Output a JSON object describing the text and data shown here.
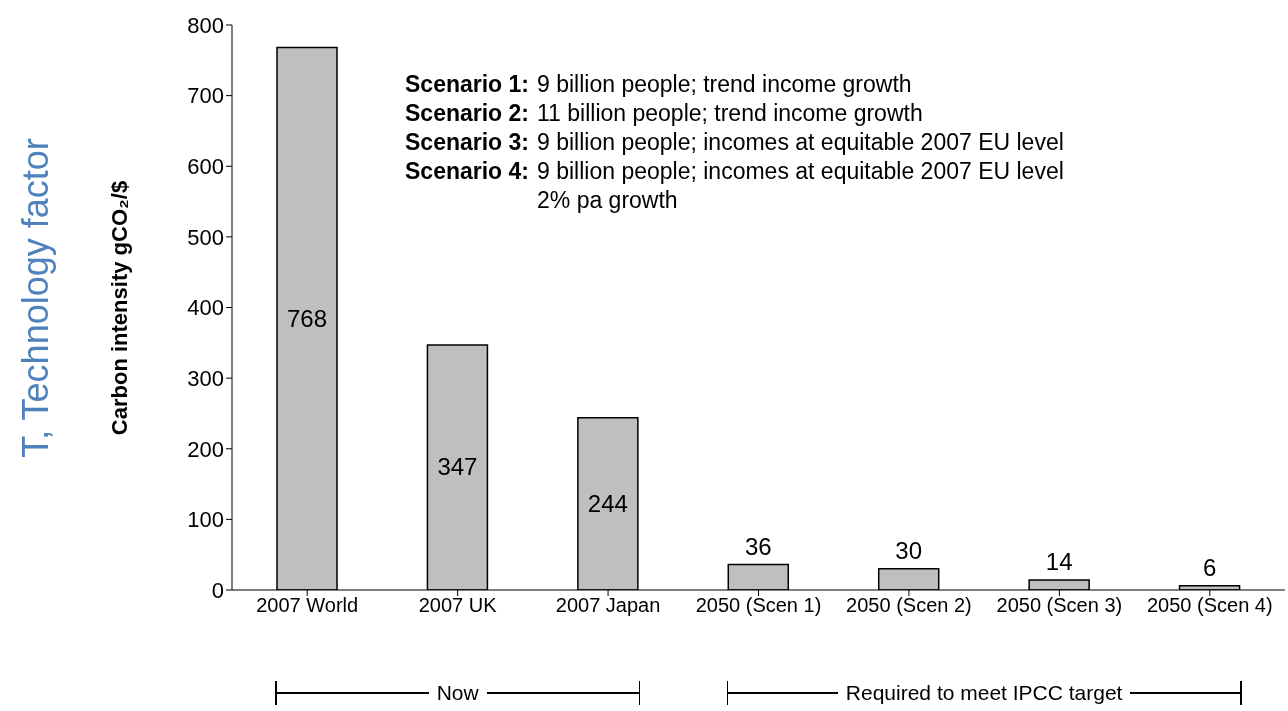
{
  "chart_data": {
    "type": "bar",
    "title": "T, Technology factor",
    "ylabel": "Carbon intensity gCO₂/$",
    "categories": [
      "2007 World",
      "2007 UK",
      "2007 Japan",
      "2050 (Scen 1)",
      "2050 (Scen 2)",
      "2050 (Scen 3)",
      "2050 (Scen 4)"
    ],
    "values": [
      768,
      347,
      244,
      36,
      30,
      14,
      6
    ],
    "color": "#bfbfbf",
    "data_labels": true,
    "ylim": [
      0,
      800
    ],
    "yticks": [
      0,
      100,
      200,
      300,
      400,
      500,
      600,
      700,
      800
    ],
    "grid": false,
    "legend": false,
    "annotations": [
      "Scenario 1: 9 billion people; trend income growth",
      "Scenario 2: 11 billion people; trend income growth",
      "Scenario 3: 9 billion people; incomes at equitable 2007 EU level",
      "Scenario 4: 9 billion people; incomes at equitable 2007 EU level 2% pa growth",
      "Now",
      "Required to meet IPCC target"
    ]
  }
}
